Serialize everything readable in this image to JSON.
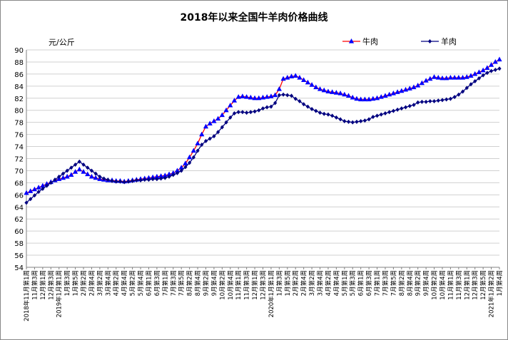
{
  "chart_data": {
    "type": "line",
    "title": "2018年以来全国牛羊肉价格曲线",
    "y_unit_label": "元/公斤",
    "categories": [
      "2018年11月第1周",
      null,
      "11月第3周",
      null,
      "12月第1周",
      null,
      "12月第3周",
      null,
      "2019年1月第1周",
      null,
      "1月第3周",
      null,
      "1月第5周",
      null,
      "2月第2周",
      null,
      "2月第4周",
      null,
      "3月第2周",
      null,
      "3月第4周",
      null,
      "4月第2周",
      null,
      "4月第4周",
      null,
      "5月第2周",
      null,
      "5月第4周",
      null,
      "6月第1周",
      null,
      "6月第3周",
      null,
      "7月第1周",
      null,
      "7月第3周",
      null,
      "7月第5周",
      null,
      "8月第2周",
      null,
      "8月第4周",
      null,
      "9月第2周",
      null,
      "9月第4周",
      null,
      "10月第2周",
      null,
      "10月第4周",
      null,
      "11月第1周",
      null,
      "11月第3周",
      null,
      "12月第1周",
      null,
      "12月第3周",
      null,
      "2020年1月第1周",
      null,
      "1月第3周",
      null,
      "1月第5周",
      null,
      "2月第2周",
      null,
      "2月第4周",
      null,
      "3月第2周",
      null,
      "3月第4周",
      null,
      "4月第2周",
      null,
      "4月第4周",
      null,
      "5月第1周",
      null,
      "5月第3周",
      null,
      "6月第1周",
      null,
      "6月第3周",
      null,
      "7月第1周",
      null,
      "7月第3周",
      null,
      "7月第5周",
      null,
      "8月第2周",
      null,
      "8月第4周",
      null,
      "9月第2周",
      null,
      "9月第4周",
      null,
      "10月第2周",
      null,
      "10月第4周",
      null,
      "11月第1周",
      null,
      "11月第3周",
      null,
      "12月第1周",
      null,
      "12月第3周",
      null,
      "12月第5周",
      null,
      "2021年1月第2周",
      null,
      "1月第4周"
    ],
    "series": [
      {
        "name": "牛肉",
        "color": "#ff0000",
        "marker": "triangle",
        "marker_color": "#0000ff",
        "values": [
          66.3,
          66.6,
          66.9,
          67.2,
          67.5,
          67.8,
          68.1,
          68.4,
          68.6,
          68.8,
          69.0,
          69.3,
          69.8,
          70.2,
          69.8,
          69.4,
          69.0,
          68.8,
          68.6,
          68.5,
          68.4,
          68.4,
          68.3,
          68.3,
          68.2,
          68.3,
          68.4,
          68.5,
          68.6,
          68.7,
          68.8,
          68.9,
          69.0,
          69.1,
          69.2,
          69.4,
          69.6,
          70.0,
          70.5,
          71.2,
          72.2,
          73.3,
          74.5,
          76.0,
          77.3,
          77.8,
          78.2,
          78.6,
          79.2,
          80.0,
          80.8,
          81.6,
          82.2,
          82.3,
          82.2,
          82.1,
          82.0,
          82.0,
          82.1,
          82.2,
          82.3,
          82.5,
          83.5,
          85.2,
          85.4,
          85.6,
          85.7,
          85.4,
          85.0,
          84.6,
          84.2,
          83.8,
          83.5,
          83.3,
          83.1,
          83.0,
          82.9,
          82.8,
          82.6,
          82.4,
          82.1,
          81.9,
          81.8,
          81.8,
          81.8,
          81.9,
          82.0,
          82.2,
          82.4,
          82.6,
          82.8,
          83.0,
          83.2,
          83.4,
          83.6,
          83.8,
          84.1,
          84.5,
          84.9,
          85.2,
          85.5,
          85.4,
          85.3,
          85.3,
          85.4,
          85.4,
          85.4,
          85.4,
          85.5,
          85.7,
          86.0,
          86.3,
          86.6,
          87.0,
          87.5,
          88.0,
          88.4
        ]
      },
      {
        "name": "羊肉",
        "color": "#000080",
        "marker": "diamond",
        "marker_color": "#000080",
        "values": [
          64.7,
          65.3,
          65.9,
          66.5,
          67.0,
          67.5,
          68.0,
          68.5,
          69.0,
          69.5,
          70.0,
          70.5,
          71.0,
          71.5,
          71.0,
          70.5,
          70.0,
          69.5,
          69.0,
          68.7,
          68.5,
          68.3,
          68.2,
          68.2,
          68.1,
          68.2,
          68.3,
          68.4,
          68.4,
          68.5,
          68.5,
          68.6,
          68.6,
          68.7,
          68.8,
          69.0,
          69.3,
          69.6,
          70.0,
          70.6,
          71.3,
          72.2,
          73.3,
          74.3,
          74.9,
          75.3,
          75.7,
          76.4,
          77.2,
          78.0,
          78.8,
          79.5,
          79.7,
          79.7,
          79.6,
          79.7,
          79.8,
          80.0,
          80.3,
          80.5,
          80.6,
          81.2,
          82.5,
          82.6,
          82.5,
          82.4,
          81.9,
          81.5,
          81.0,
          80.6,
          80.2,
          79.9,
          79.6,
          79.4,
          79.3,
          79.1,
          78.8,
          78.5,
          78.2,
          78.1,
          78.0,
          78.1,
          78.2,
          78.3,
          78.5,
          78.9,
          79.1,
          79.3,
          79.5,
          79.7,
          79.9,
          80.1,
          80.3,
          80.5,
          80.7,
          80.9,
          81.3,
          81.4,
          81.4,
          81.5,
          81.5,
          81.6,
          81.7,
          81.8,
          81.9,
          82.2,
          82.6,
          83.1,
          83.7,
          84.3,
          84.8,
          85.3,
          85.8,
          86.2,
          86.5,
          86.7,
          86.9
        ]
      }
    ],
    "ylim": [
      54,
      90
    ],
    "yticks": [
      54,
      56,
      58,
      60,
      62,
      64,
      66,
      68,
      70,
      72,
      74,
      76,
      78,
      80,
      82,
      84,
      86,
      88,
      90
    ],
    "grid": true,
    "legend": "top-right"
  }
}
